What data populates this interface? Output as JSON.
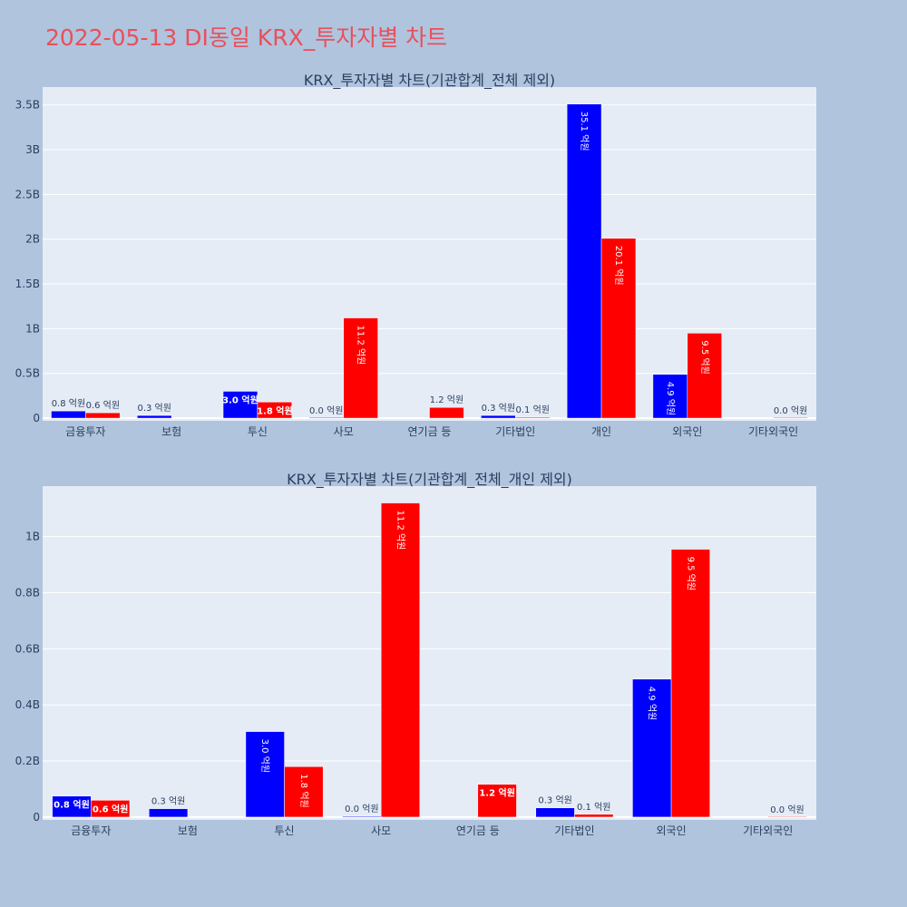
{
  "page": {
    "title": "2022-05-13 DI동일 KRX_투자자별 차트",
    "background": "#b0c4de",
    "title_color": "#e8505b"
  },
  "chart_data": [
    {
      "type": "bar",
      "title": "KRX_투자자별 차트(기관합계_전체 제외)",
      "categories": [
        "금융투자",
        "보험",
        "투신",
        "사모",
        "연기금 등",
        "기타법인",
        "개인",
        "외국인",
        "기타외국인"
      ],
      "series": [
        {
          "color": "#0000ff",
          "values": [
            0.08,
            0.03,
            0.3,
            0.0,
            null,
            0.03,
            3.51,
            0.49,
            null
          ],
          "labels": [
            "0.8 억원",
            "0.3 억원",
            "3.0 억원",
            "0.0 억원",
            "",
            "0.3 억원",
            "35.1 억원",
            "4.9 억원",
            ""
          ]
        },
        {
          "color": "#ff0000",
          "values": [
            0.06,
            null,
            0.18,
            1.12,
            0.12,
            0.01,
            2.01,
            0.95,
            0.0
          ],
          "labels": [
            "0.6 억원",
            "",
            "1.8 억원",
            "11.2 억원",
            "1.2 억원",
            "0.1 억원",
            "20.1 억원",
            "9.5 억원",
            "0.0 억원"
          ]
        }
      ],
      "yticks": [
        0,
        0.5,
        1,
        1.5,
        2,
        2.5,
        3,
        3.5
      ],
      "ytick_labels": [
        "0",
        "0.5B",
        "1B",
        "1.5B",
        "2B",
        "2.5B",
        "3B",
        "3.5B"
      ],
      "ylim": [
        -0.03,
        3.7
      ],
      "grid": true,
      "plot_bg": "#e5ecf6"
    },
    {
      "type": "bar",
      "title": "KRX_투자자별 차트(기관합계_전체_개인 제외)",
      "categories": [
        "금융투자",
        "보험",
        "투신",
        "사모",
        "연기금 등",
        "기타법인",
        "외국인",
        "기타외국인"
      ],
      "series": [
        {
          "color": "#0000ff",
          "values": [
            0.075,
            0.03,
            0.305,
            0.003,
            null,
            0.033,
            0.492,
            null
          ],
          "labels": [
            "0.8 억원",
            "0.3 억원",
            "3.0 억원",
            "0.0 억원",
            "",
            "0.3 억원",
            "4.9 억원",
            ""
          ]
        },
        {
          "color": "#ff0000",
          "values": [
            0.06,
            null,
            0.18,
            1.12,
            0.117,
            0.01,
            0.955,
            0.0
          ],
          "labels": [
            "0.6 억원",
            "",
            "1.8 억원",
            "11.2 억원",
            "1.2 억원",
            "0.1 억원",
            "9.5 억원",
            "0.0 억원"
          ]
        }
      ],
      "yticks": [
        0,
        0.2,
        0.4,
        0.6,
        0.8,
        1
      ],
      "ytick_labels": [
        "0",
        "0.2B",
        "0.4B",
        "0.6B",
        "0.8B",
        "1B"
      ],
      "ylim": [
        -0.01,
        1.18
      ],
      "grid": true,
      "plot_bg": "#e5ecf6"
    }
  ]
}
